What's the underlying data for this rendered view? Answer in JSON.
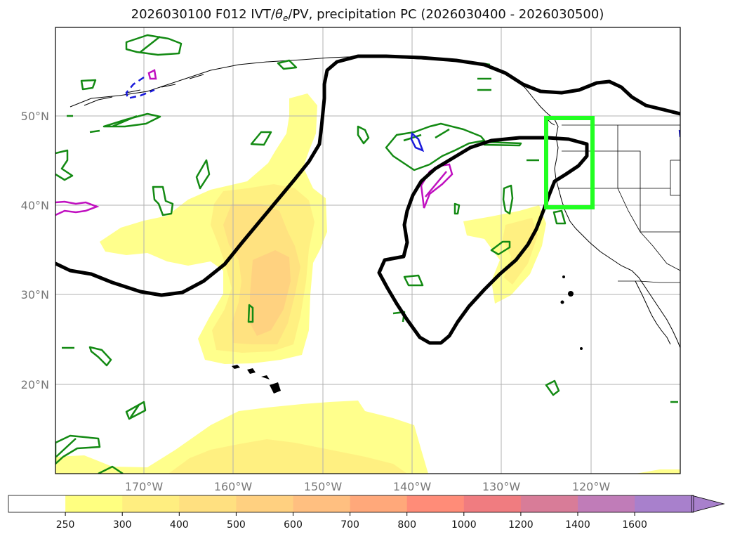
{
  "title": {
    "prefix": "2026030100 F012 IVT/",
    "theta": "θ",
    "theta_sub": "e",
    "suffix": "/PV, precipitation PC (2026030400 - 2026030500)"
  },
  "map": {
    "lat_labels": [
      "50°N",
      "40°N",
      "30°N",
      "20°N"
    ],
    "lon_labels": [
      "170°W",
      "160°W",
      "150°W",
      "140°W",
      "130°W",
      "120°W"
    ],
    "grid": true,
    "colors": {
      "contour_black": "#000000",
      "contour_green": "#138a13",
      "contour_blue": "#1a1adb",
      "contour_magenta": "#c010c0",
      "box": "#22ff22",
      "coast": "#000000"
    }
  },
  "colorbar": {
    "ticks": [
      "250",
      "300",
      "400",
      "500",
      "600",
      "700",
      "800",
      "1000",
      "1200",
      "1400",
      "1600"
    ],
    "colors": [
      "#ffffff",
      "#ffff80",
      "#ffee80",
      "#ffe080",
      "#ffd080",
      "#ffbf80",
      "#ffa87a",
      "#ff8c78",
      "#f07c80",
      "#d87c98",
      "#c07cb8",
      "#a880cc"
    ],
    "extend": "max"
  }
}
